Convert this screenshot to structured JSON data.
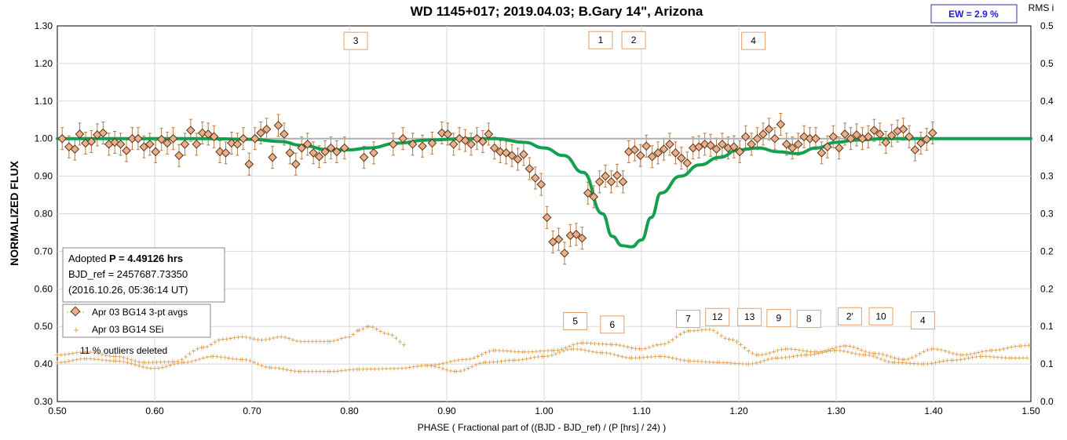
{
  "chart_data": {
    "type": "scatter",
    "title": "WD 1145+017; 2019.04.03; B.Gary 14\", Arizona",
    "xlabel": "PHASE ( Fractional part of ((BJD - BJD_ref) / (P [hrs] / 24) )",
    "ylabel": "NORMALIZED FLUX",
    "y2label": "RMS i",
    "xlim": [
      0.5,
      1.5
    ],
    "ylim": [
      0.3,
      1.3
    ],
    "y2lim": [
      0.0,
      0.5
    ],
    "xticks": [
      "0.50",
      "0.60",
      "0.70",
      "0.80",
      "0.90",
      "1.00",
      "1.10",
      "1.20",
      "1.30",
      "1.40",
      "1.50"
    ],
    "yticks": [
      "0.30",
      "0.40",
      "0.50",
      "0.60",
      "0.70",
      "0.80",
      "0.90",
      "1.00",
      "1.10",
      "1.20",
      "1.30"
    ],
    "y2ticks": [
      "0.0",
      "0.1",
      "0.1",
      "0.2",
      "0.2",
      "0.3",
      "0.3",
      "0.4",
      "0.4",
      "0.5",
      "0.5"
    ],
    "grid": true,
    "ew_label": "EW =  2.9 %",
    "info_box": {
      "line1_prefix": "Adopted ",
      "line1_bold": "P = 4.49126 hrs",
      "line2": "BJD_ref = 2457687.73350",
      "line3": "(2016.10.26, 05:36:14 UT)"
    },
    "legend": [
      "Apr 03 BG14 3-pt avgs",
      "Apr 03 BG14 SEi"
    ],
    "note": "11 % outliers deleted",
    "colors": {
      "points": "#e8b08c",
      "point_edge": "#5a3010",
      "model": "#12a050",
      "sei": "#e0a050",
      "reference": "#b0b0b0",
      "label_box": "#e0a070",
      "ew_text": "#1f1fd0"
    },
    "phase_labels": [
      {
        "text": "3",
        "x": 0.8065,
        "y": 1.26
      },
      {
        "text": "1",
        "x": 1.058,
        "y": 1.262
      },
      {
        "text": "2",
        "x": 1.092,
        "y": 1.262
      },
      {
        "text": "4",
        "x": 1.215,
        "y": 1.26
      },
      {
        "text": "5",
        "x": 1.032,
        "y": 0.514
      },
      {
        "text": "6",
        "x": 1.07,
        "y": 0.505
      },
      {
        "text": "7",
        "x": 1.148,
        "y": 0.52
      },
      {
        "text": "12",
        "x": 1.178,
        "y": 0.525
      },
      {
        "text": "13",
        "x": 1.211,
        "y": 0.525
      },
      {
        "text": "9",
        "x": 1.241,
        "y": 0.522
      },
      {
        "text": "8",
        "x": 1.272,
        "y": 0.52
      },
      {
        "text": "2'",
        "x": 1.314,
        "y": 0.527
      },
      {
        "text": "10",
        "x": 1.346,
        "y": 0.527
      },
      {
        "text": "4",
        "x": 1.389,
        "y": 0.516
      }
    ],
    "series": [
      {
        "name": "Apr 03 BG14 3-pt avgs",
        "points": [
          [
            0.505,
            1.0
          ],
          [
            0.512,
            0.978
          ],
          [
            0.518,
            0.972
          ],
          [
            0.523,
            1.012
          ],
          [
            0.529,
            0.988
          ],
          [
            0.535,
            0.992
          ],
          [
            0.541,
            1.01
          ],
          [
            0.547,
            1.015
          ],
          [
            0.553,
            0.985
          ],
          [
            0.559,
            0.99
          ],
          [
            0.565,
            0.985
          ],
          [
            0.571,
            0.968
          ],
          [
            0.577,
            1.0
          ],
          [
            0.583,
            1.0
          ],
          [
            0.589,
            0.978
          ],
          [
            0.595,
            0.985
          ],
          [
            0.601,
            0.965
          ],
          [
            0.607,
            0.998
          ],
          [
            0.613,
            0.988
          ],
          [
            0.619,
            1.0
          ],
          [
            0.625,
            0.955
          ],
          [
            0.631,
            0.985
          ],
          [
            0.637,
            1.022
          ],
          [
            0.643,
            0.985
          ],
          [
            0.649,
            1.015
          ],
          [
            0.655,
            1.012
          ],
          [
            0.661,
            1.005
          ],
          [
            0.667,
            0.965
          ],
          [
            0.673,
            0.962
          ],
          [
            0.679,
            0.988
          ],
          [
            0.685,
            0.985
          ],
          [
            0.691,
            1.0
          ],
          [
            0.697,
            0.932
          ],
          [
            0.703,
            1.0
          ],
          [
            0.709,
            1.015
          ],
          [
            0.715,
            1.025
          ],
          [
            0.721,
            0.95
          ],
          [
            0.727,
            1.035
          ],
          [
            0.733,
            1.012
          ],
          [
            0.739,
            0.962
          ],
          [
            0.745,
            0.932
          ],
          [
            0.751,
            0.975
          ],
          [
            0.757,
            0.985
          ],
          [
            0.763,
            0.962
          ],
          [
            0.769,
            0.952
          ],
          [
            0.775,
            0.965
          ],
          [
            0.781,
            0.975
          ],
          [
            0.787,
            0.965
          ],
          [
            0.795,
            0.975
          ],
          [
            0.815,
            0.95
          ],
          [
            0.825,
            0.962
          ],
          [
            0.845,
            0.985
          ],
          [
            0.855,
            1.0
          ],
          [
            0.865,
            0.985
          ],
          [
            0.875,
            0.98
          ],
          [
            0.885,
            0.988
          ],
          [
            0.895,
            1.015
          ],
          [
            0.901,
            1.012
          ],
          [
            0.907,
            0.985
          ],
          [
            0.913,
            1.0
          ],
          [
            0.919,
            0.995
          ],
          [
            0.925,
            0.985
          ],
          [
            0.931,
            1.0
          ],
          [
            0.937,
            0.992
          ],
          [
            0.943,
            1.012
          ],
          [
            0.949,
            0.975
          ],
          [
            0.955,
            0.965
          ],
          [
            0.961,
            0.962
          ],
          [
            0.967,
            0.955
          ],
          [
            0.973,
            0.945
          ],
          [
            0.979,
            0.958
          ],
          [
            0.985,
            0.92
          ],
          [
            0.991,
            0.895
          ],
          [
            0.997,
            0.878
          ],
          [
            1.003,
            0.79
          ],
          [
            1.009,
            0.725
          ],
          [
            1.015,
            0.732
          ],
          [
            1.021,
            0.695
          ],
          [
            1.027,
            0.742
          ],
          [
            1.033,
            0.745
          ],
          [
            1.039,
            0.735
          ],
          [
            1.045,
            0.855
          ],
          [
            1.051,
            0.845
          ],
          [
            1.057,
            0.885
          ],
          [
            1.063,
            0.9
          ],
          [
            1.069,
            0.885
          ],
          [
            1.075,
            0.902
          ],
          [
            1.081,
            0.885
          ],
          [
            1.087,
            0.965
          ],
          [
            1.093,
            0.97
          ],
          [
            1.099,
            0.955
          ],
          [
            1.105,
            0.98
          ],
          [
            1.111,
            0.952
          ],
          [
            1.117,
            0.962
          ],
          [
            1.123,
            0.972
          ],
          [
            1.129,
            0.985
          ],
          [
            1.135,
            0.962
          ],
          [
            1.141,
            0.948
          ],
          [
            1.147,
            0.935
          ],
          [
            1.153,
            0.975
          ],
          [
            1.159,
            0.978
          ],
          [
            1.165,
            0.985
          ],
          [
            1.171,
            0.982
          ],
          [
            1.177,
            0.972
          ],
          [
            1.183,
            0.985
          ],
          [
            1.189,
            0.975
          ],
          [
            1.195,
            0.978
          ],
          [
            1.201,
            0.965
          ],
          [
            1.207,
            1.005
          ],
          [
            1.213,
            0.985
          ],
          [
            1.219,
            1.0
          ],
          [
            1.225,
            1.012
          ],
          [
            1.231,
            1.025
          ],
          [
            1.237,
            1.0
          ],
          [
            1.243,
            1.038
          ],
          [
            1.249,
            0.985
          ],
          [
            1.255,
            0.975
          ],
          [
            1.261,
            0.985
          ],
          [
            1.267,
            1.005
          ],
          [
            1.273,
            1.0
          ],
          [
            1.279,
            1.0
          ],
          [
            1.285,
            0.962
          ],
          [
            1.291,
            0.978
          ],
          [
            1.297,
            1.005
          ],
          [
            1.303,
            0.975
          ],
          [
            1.309,
            1.012
          ],
          [
            1.315,
            1.0
          ],
          [
            1.321,
            1.01
          ],
          [
            1.327,
            1.0
          ],
          [
            1.333,
            1.005
          ],
          [
            1.339,
            1.022
          ],
          [
            1.345,
            1.012
          ],
          [
            1.351,
            0.99
          ],
          [
            1.357,
            1.008
          ],
          [
            1.363,
            1.02
          ],
          [
            1.369,
            1.025
          ],
          [
            1.375,
            1.005
          ],
          [
            1.381,
            0.97
          ],
          [
            1.387,
            0.988
          ],
          [
            1.393,
            0.998
          ],
          [
            1.399,
            1.015
          ]
        ]
      },
      {
        "name": "Apr 03 BG14 SEi",
        "band1": [
          [
            0.5,
            0.062
          ],
          [
            0.53,
            0.066
          ],
          [
            0.56,
            0.06
          ],
          [
            0.59,
            0.052
          ],
          [
            0.62,
            0.053
          ],
          [
            0.65,
            0.072
          ],
          [
            0.67,
            0.083
          ],
          [
            0.69,
            0.086
          ],
          [
            0.71,
            0.082
          ],
          [
            0.73,
            0.086
          ],
          [
            0.75,
            0.08
          ],
          [
            0.78,
            0.08
          ],
          [
            0.8,
            0.086
          ],
          [
            0.81,
            0.095
          ],
          [
            0.82,
            0.1
          ],
          [
            0.84,
            0.09
          ],
          [
            0.86,
            0.074
          ]
        ],
        "band2": [
          [
            0.5,
            0.052
          ],
          [
            0.53,
            0.057
          ],
          [
            0.56,
            0.054
          ],
          [
            0.6,
            0.044
          ],
          [
            0.63,
            0.052
          ],
          [
            0.66,
            0.06
          ],
          [
            0.69,
            0.056
          ],
          [
            0.72,
            0.045
          ],
          [
            0.75,
            0.04
          ],
          [
            0.78,
            0.04
          ],
          [
            0.81,
            0.043
          ],
          [
            0.85,
            0.044
          ],
          [
            0.88,
            0.048
          ],
          [
            0.91,
            0.04
          ],
          [
            0.94,
            0.052
          ],
          [
            0.97,
            0.055
          ],
          [
            1.0,
            0.06
          ],
          [
            1.03,
            0.07
          ],
          [
            1.06,
            0.065
          ],
          [
            1.09,
            0.058
          ],
          [
            1.12,
            0.06
          ],
          [
            1.15,
            0.054
          ],
          [
            1.18,
            0.052
          ],
          [
            1.21,
            0.05
          ],
          [
            1.24,
            0.058
          ],
          [
            1.27,
            0.062
          ],
          [
            1.3,
            0.068
          ],
          [
            1.33,
            0.062
          ],
          [
            1.36,
            0.052
          ],
          [
            1.39,
            0.05
          ],
          [
            1.42,
            0.055
          ],
          [
            1.45,
            0.06
          ],
          [
            1.48,
            0.058
          ],
          [
            1.5,
            0.058
          ]
        ],
        "band3": [
          [
            0.88,
            0.048
          ],
          [
            0.92,
            0.056
          ],
          [
            0.95,
            0.068
          ],
          [
            0.98,
            0.066
          ],
          [
            1.01,
            0.068
          ],
          [
            1.04,
            0.078
          ],
          [
            1.07,
            0.076
          ],
          [
            1.1,
            0.07
          ],
          [
            1.12,
            0.076
          ],
          [
            1.15,
            0.094
          ],
          [
            1.17,
            0.096
          ],
          [
            1.19,
            0.083
          ],
          [
            1.22,
            0.062
          ],
          [
            1.25,
            0.07
          ],
          [
            1.28,
            0.066
          ],
          [
            1.31,
            0.074
          ],
          [
            1.34,
            0.064
          ],
          [
            1.37,
            0.056
          ],
          [
            1.4,
            0.07
          ],
          [
            1.43,
            0.062
          ],
          [
            1.46,
            0.068
          ],
          [
            1.49,
            0.074
          ],
          [
            1.5,
            0.075
          ]
        ]
      },
      {
        "name": "model",
        "curve": [
          [
            0.5,
            1.0
          ],
          [
            0.55,
            1.0
          ],
          [
            0.6,
            1.0
          ],
          [
            0.65,
            1.0
          ],
          [
            0.7,
            0.998
          ],
          [
            0.73,
            0.992
          ],
          [
            0.75,
            0.982
          ],
          [
            0.78,
            0.97
          ],
          [
            0.8,
            0.97
          ],
          [
            0.82,
            0.975
          ],
          [
            0.85,
            0.988
          ],
          [
            0.88,
            0.996
          ],
          [
            0.92,
            1.0
          ],
          [
            0.95,
            1.0
          ],
          [
            0.98,
            0.99
          ],
          [
            1.0,
            0.975
          ],
          [
            1.02,
            0.955
          ],
          [
            1.04,
            0.91
          ],
          [
            1.06,
            0.8
          ],
          [
            1.07,
            0.74
          ],
          [
            1.08,
            0.715
          ],
          [
            1.09,
            0.712
          ],
          [
            1.1,
            0.73
          ],
          [
            1.11,
            0.79
          ],
          [
            1.12,
            0.855
          ],
          [
            1.14,
            0.9
          ],
          [
            1.16,
            0.93
          ],
          [
            1.18,
            0.95
          ],
          [
            1.2,
            0.97
          ],
          [
            1.22,
            0.975
          ],
          [
            1.24,
            0.965
          ],
          [
            1.26,
            0.96
          ],
          [
            1.28,
            0.975
          ],
          [
            1.3,
            0.99
          ],
          [
            1.32,
            0.996
          ],
          [
            1.35,
            1.0
          ],
          [
            1.5,
            1.0
          ]
        ]
      }
    ]
  }
}
